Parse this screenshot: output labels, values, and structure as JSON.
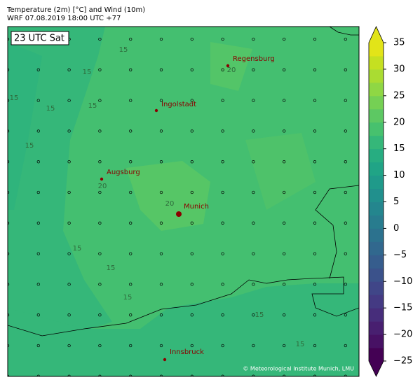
{
  "header": {
    "title": "Temperature (2m) [°C] and Wind (10m)",
    "subtitle": "WRF 07.08.2019 18:00 UTC +77"
  },
  "map": {
    "time_label": "23 UTC Sat",
    "cities": [
      "Regensburg",
      "Ingolstadt",
      "Augsburg",
      "Munich",
      "Innsbruck"
    ],
    "contour_labels": [
      15,
      15,
      15,
      15,
      15,
      15,
      20,
      20,
      20,
      15,
      15,
      15,
      15,
      15
    ],
    "credit": "© Meteorological Institute Munich, LMU"
  },
  "colorbar": {
    "lim": [
      -25,
      35
    ],
    "ticks": [
      {
        "value": -25,
        "label": "−25"
      },
      {
        "value": -20,
        "label": "−20"
      },
      {
        "value": -15,
        "label": "−15"
      },
      {
        "value": -10,
        "label": "−10"
      },
      {
        "value": -5,
        "label": "−5"
      },
      0,
      5,
      10,
      15,
      20,
      25,
      30,
      35
    ],
    "colors": [
      "#440154",
      "#471164",
      "#481f70",
      "#472d7b",
      "#443a83",
      "#404688",
      "#3b528b",
      "#365d8d",
      "#31688e",
      "#2c728e",
      "#287c8e",
      "#24868e",
      "#21908d",
      "#1f9a8a",
      "#20a486",
      "#27ad81",
      "#35b779",
      "#47c16e",
      "#5dc863",
      "#75d054",
      "#8fd744",
      "#aadc32",
      "#c5e021",
      "#e2e418"
    ]
  }
}
